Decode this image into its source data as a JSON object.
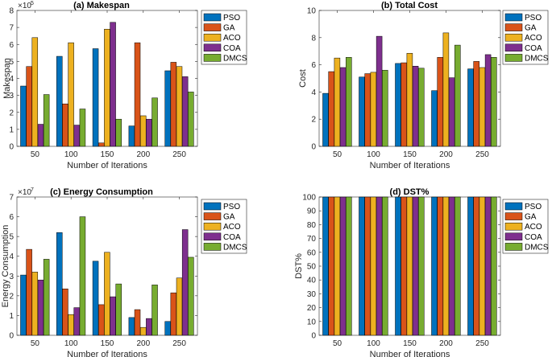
{
  "series_names": [
    "PSO",
    "GA",
    "ACO",
    "COA",
    "DMCS"
  ],
  "colors": {
    "PSO": "#0072BD",
    "GA": "#D95319",
    "ACO": "#EDB120",
    "COA": "#7E2F8E",
    "DMCS": "#77AC30"
  },
  "chart_data": [
    {
      "type": "bar",
      "title": "(a) Makespan",
      "xlabel": "Number of Iterations",
      "ylabel": "Makespan",
      "scale_base": "×10",
      "scale_exp": "5",
      "categories": [
        "50",
        "100",
        "150",
        "200",
        "250"
      ],
      "ylim": [
        0,
        8
      ],
      "yticks": [
        0,
        1,
        2,
        3,
        4,
        5,
        6,
        7,
        8
      ],
      "series": [
        {
          "name": "PSO",
          "values": [
            3.55,
            5.3,
            5.75,
            1.2,
            4.45
          ]
        },
        {
          "name": "GA",
          "values": [
            4.7,
            2.5,
            0.2,
            6.1,
            4.95
          ]
        },
        {
          "name": "ACO",
          "values": [
            6.4,
            6.1,
            6.9,
            1.8,
            4.7
          ]
        },
        {
          "name": "COA",
          "values": [
            1.3,
            1.25,
            7.3,
            1.6,
            4.1
          ]
        },
        {
          "name": "DMCS",
          "values": [
            3.05,
            2.2,
            1.6,
            2.85,
            3.2
          ]
        }
      ]
    },
    {
      "type": "bar",
      "title": "(b) Total Cost",
      "xlabel": "Number of Iterations",
      "ylabel": "Cost",
      "scale_base": "",
      "scale_exp": "",
      "categories": [
        "50",
        "100",
        "150",
        "200",
        "250"
      ],
      "ylim": [
        0,
        10
      ],
      "yticks": [
        0,
        2,
        4,
        6,
        8,
        10
      ],
      "series": [
        {
          "name": "PSO",
          "values": [
            3.9,
            5.1,
            6.1,
            4.1,
            5.7
          ]
        },
        {
          "name": "GA",
          "values": [
            5.5,
            5.35,
            6.15,
            6.55,
            6.25
          ]
        },
        {
          "name": "ACO",
          "values": [
            6.5,
            5.45,
            6.85,
            8.35,
            5.8
          ]
        },
        {
          "name": "COA",
          "values": [
            5.8,
            8.1,
            5.9,
            5.05,
            6.75
          ]
        },
        {
          "name": "DMCS",
          "values": [
            6.55,
            5.6,
            5.75,
            7.45,
            6.55
          ]
        }
      ]
    },
    {
      "type": "bar",
      "title": "(c) Energy Consumption",
      "xlabel": "Number of Iterations",
      "ylabel": "Energy Consumption",
      "scale_base": "×10",
      "scale_exp": "7",
      "categories": [
        "50",
        "100",
        "150",
        "200",
        "250"
      ],
      "ylim": [
        0,
        7
      ],
      "yticks": [
        0,
        1,
        2,
        3,
        4,
        5,
        6,
        7
      ],
      "series": [
        {
          "name": "PSO",
          "values": [
            3.05,
            5.2,
            3.75,
            0.9,
            0.7
          ]
        },
        {
          "name": "GA",
          "values": [
            4.35,
            2.35,
            1.55,
            1.3,
            2.15
          ]
        },
        {
          "name": "ACO",
          "values": [
            3.2,
            1.05,
            4.2,
            0.4,
            2.9
          ]
        },
        {
          "name": "COA",
          "values": [
            2.8,
            1.4,
            1.95,
            0.85,
            5.35
          ]
        },
        {
          "name": "DMCS",
          "values": [
            3.85,
            6.0,
            2.6,
            2.55,
            3.95
          ]
        }
      ]
    },
    {
      "type": "bar",
      "title": "(d) DST%",
      "xlabel": "Number of Iterations",
      "ylabel": "DST%",
      "scale_base": "",
      "scale_exp": "",
      "categories": [
        "50",
        "100",
        "150",
        "200",
        "250"
      ],
      "ylim": [
        0,
        100
      ],
      "yticks": [
        0,
        10,
        20,
        30,
        40,
        50,
        60,
        70,
        80,
        90,
        100
      ],
      "series": [
        {
          "name": "PSO",
          "values": [
            100,
            100,
            100,
            100,
            100
          ]
        },
        {
          "name": "GA",
          "values": [
            100,
            100,
            100,
            100,
            100
          ]
        },
        {
          "name": "ACO",
          "values": [
            100,
            100,
            100,
            100,
            100
          ]
        },
        {
          "name": "COA",
          "values": [
            100,
            100,
            100,
            100,
            100
          ]
        },
        {
          "name": "DMCS",
          "values": [
            100,
            100,
            100,
            100,
            100
          ]
        }
      ]
    }
  ]
}
